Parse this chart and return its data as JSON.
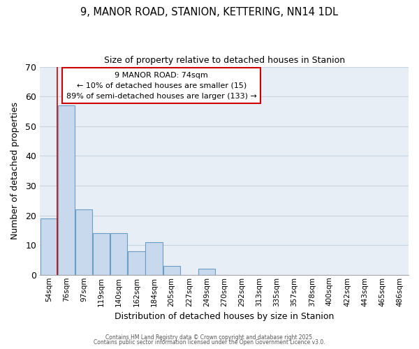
{
  "title_line1": "9, MANOR ROAD, STANION, KETTERING, NN14 1DL",
  "title_line2": "Size of property relative to detached houses in Stanion",
  "xlabel": "Distribution of detached houses by size in Stanion",
  "ylabel": "Number of detached properties",
  "categories": [
    "54sqm",
    "76sqm",
    "97sqm",
    "119sqm",
    "140sqm",
    "162sqm",
    "184sqm",
    "205sqm",
    "227sqm",
    "249sqm",
    "270sqm",
    "292sqm",
    "313sqm",
    "335sqm",
    "357sqm",
    "378sqm",
    "400sqm",
    "422sqm",
    "443sqm",
    "465sqm",
    "486sqm"
  ],
  "values": [
    19,
    57,
    22,
    14,
    14,
    8,
    11,
    3,
    0,
    2,
    0,
    0,
    0,
    0,
    0,
    0,
    0,
    0,
    0,
    0,
    0
  ],
  "bar_color": "#c8d8ed",
  "bar_edgecolor": "#6a9ec5",
  "grid_color": "#c8d4e0",
  "background_color": "#e8eef5",
  "annotation_text": "9 MANOR ROAD: 74sqm\n← 10% of detached houses are smaller (15)\n89% of semi-detached houses are larger (133) →",
  "annotation_box_color": "#ffffff",
  "annotation_border_color": "#cc0000",
  "ylim": [
    0,
    70
  ],
  "footer_line1": "Contains HM Land Registry data © Crown copyright and database right 2025.",
  "footer_line2": "Contains public sector information licensed under the Open Government Licence v3.0."
}
